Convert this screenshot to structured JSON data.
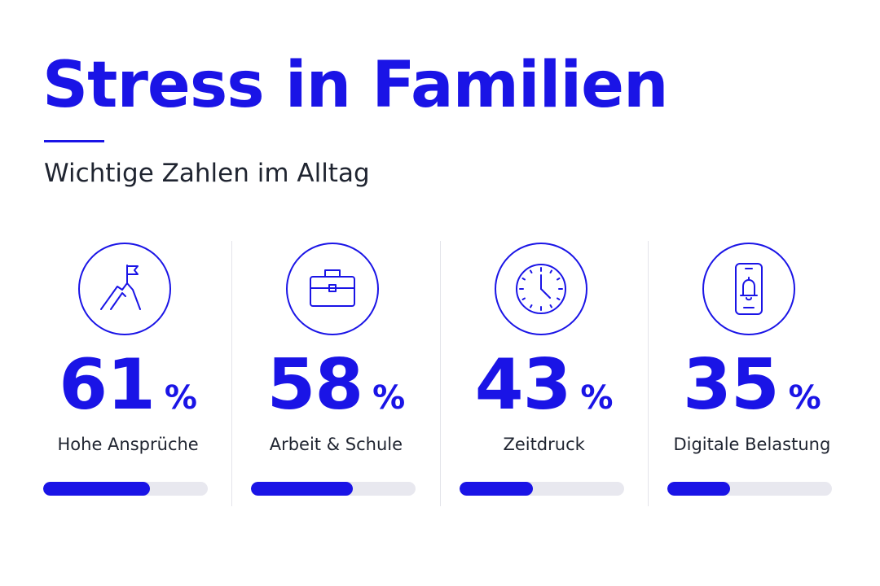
{
  "title": "Stress in Familien",
  "subtitle": "Wichtige Zahlen im Alltag",
  "accent_color": "#1a14e6",
  "text_color": "#1f2430",
  "track_color": "#e8e8ef",
  "stats": [
    {
      "icon": "mountain-flag-icon",
      "value": "61",
      "unit": "%",
      "label": "Hohe Ansprüche",
      "progress": 0.65
    },
    {
      "icon": "briefcase-icon",
      "value": "58",
      "unit": "%",
      "label": "Arbeit & Schule",
      "progress": 0.62
    },
    {
      "icon": "clock-icon",
      "value": "43",
      "unit": "%",
      "label": "Zeitdruck",
      "progress": 0.45
    },
    {
      "icon": "phone-bell-icon",
      "value": "35",
      "unit": "%",
      "label": "Digitale Belastung",
      "progress": 0.38
    }
  ]
}
